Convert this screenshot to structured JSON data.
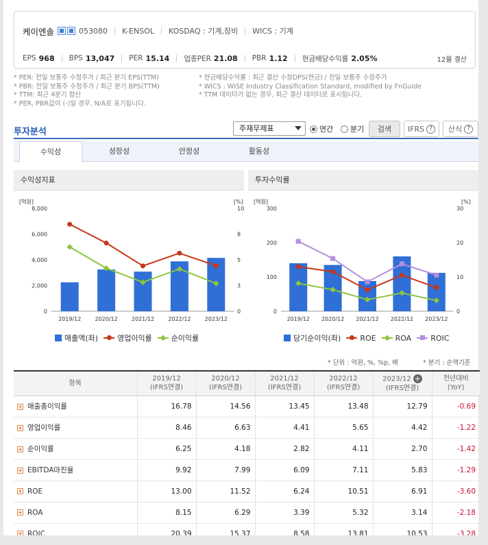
{
  "company": {
    "name": "케이엔솔",
    "code": "053080",
    "english": "K-ENSOL",
    "market": "KOSDAQ : 기계,장비",
    "wics": "WICS : 기계"
  },
  "metrics": [
    {
      "label": "EPS",
      "value": "968"
    },
    {
      "label": "BPS",
      "value": "13,047"
    },
    {
      "label": "PER",
      "value": "15.14"
    },
    {
      "label": "업종PER",
      "value": "21.08"
    },
    {
      "label": "PBR",
      "value": "1.12"
    },
    {
      "label": "현금배당수익률",
      "value": "2.05%"
    }
  ],
  "settlement": "12월 결산",
  "notes_left": [
    "* PER: 전일 보통주 수정주가 / 최근 분기 EPS(TTM)",
    "* PBR: 전일 보통주 수정주가 / 최근 분기 BPS(TTM)",
    "* TTM: 최근 4분기 합산",
    "* PER, PBR값이 (-)일 경우, N/A로 표기됩니다."
  ],
  "notes_right": [
    "* 현금배당수익률 : 최근 결산 수정DPS(현금) / 전일 보통주 수정주가",
    "* WICS : WISE Industry Classification Standard, modified by FnGuide",
    "* TTM 데이터가 없는 경우, 최근 결산 데이터로 표시됩니다."
  ],
  "section_title": "투자분석",
  "controls": {
    "select_value": "주재무제표",
    "radio_annual": "연간",
    "radio_quarter": "분기",
    "search": "검색",
    "ifrs": "IFRS",
    "formula": "산식"
  },
  "tabs": [
    "수익성",
    "성장성",
    "안정성",
    "활동성"
  ],
  "panels": {
    "left_title": "수익성지표",
    "right_title": "투자수익률"
  },
  "colors": {
    "bar": "#2f6fd6",
    "red": "#c8361a",
    "green": "#8cc63f",
    "purple": "#b48ee0",
    "accent": "#2a5eb5"
  },
  "chart_data": [
    {
      "type": "bar",
      "title": "수익성지표",
      "categories": [
        "2019/12",
        "2020/12",
        "2021/12",
        "2022/12",
        "2023/12"
      ],
      "ylabel_left": "[억원]",
      "ylabel_right": "[%]",
      "ylim_left": [
        0,
        8000
      ],
      "ylim_right": [
        0,
        10
      ],
      "yticks_left": [
        "8,000",
        "6,000",
        "4,000",
        "2,000",
        "0"
      ],
      "yticks_right": [
        "10",
        "8",
        "5",
        "3",
        "0"
      ],
      "series": [
        {
          "name": "매출액(좌)",
          "kind": "bar",
          "axis": "left",
          "values": [
            2250,
            3250,
            3080,
            3880,
            4150
          ]
        },
        {
          "name": "영업이익률",
          "kind": "line",
          "axis": "right",
          "values": [
            8.46,
            6.63,
            4.41,
            5.65,
            4.42
          ]
        },
        {
          "name": "순이익률",
          "kind": "line",
          "axis": "right",
          "values": [
            6.25,
            4.18,
            2.82,
            4.11,
            2.7
          ]
        }
      ]
    },
    {
      "type": "bar",
      "title": "투자수익률",
      "categories": [
        "2019/12",
        "2020/12",
        "2021/12",
        "2022/12",
        "2023/12"
      ],
      "ylabel_left": "[억원]",
      "ylabel_right": "[%]",
      "ylim_left": [
        0,
        300
      ],
      "ylim_right": [
        0,
        30
      ],
      "yticks_left": [
        "300",
        "200",
        "100",
        "0"
      ],
      "yticks_right": [
        "30",
        "20",
        "10",
        "0"
      ],
      "series": [
        {
          "name": "당기순이익(좌)",
          "kind": "bar",
          "axis": "left",
          "values": [
            140,
            135,
            88,
            160,
            112
          ]
        },
        {
          "name": "ROE",
          "kind": "line",
          "axis": "right",
          "values": [
            13.0,
            11.52,
            6.24,
            10.51,
            6.91
          ]
        },
        {
          "name": "ROA",
          "kind": "line",
          "axis": "right",
          "values": [
            8.15,
            6.29,
            3.39,
            5.32,
            3.14
          ]
        },
        {
          "name": "ROIC",
          "kind": "line",
          "axis": "right",
          "values": [
            20.39,
            15.37,
            8.58,
            13.81,
            10.53
          ]
        }
      ]
    }
  ],
  "unit_note": "* 단위 : 억원, %, %p, 배",
  "quarter_note": "* 분기 : 순액기준",
  "table": {
    "header_item": "항목",
    "columns": [
      {
        "year": "2019/12",
        "sub": "(IFRS연결)"
      },
      {
        "year": "2020/12",
        "sub": "(IFRS연결)"
      },
      {
        "year": "2021/12",
        "sub": "(IFRS연결)"
      },
      {
        "year": "2022/12",
        "sub": "(IFRS연결)"
      },
      {
        "year": "2023/12",
        "sub": "(IFRS연결)"
      }
    ],
    "yoy_header": "전년대비",
    "yoy_sub": "(YoY)",
    "rows": [
      {
        "label": "매출총이익률",
        "values": [
          "16.78",
          "14.56",
          "13.45",
          "13.48",
          "12.79"
        ],
        "yoy": "-0.69"
      },
      {
        "label": "영업이익률",
        "values": [
          "8.46",
          "6.63",
          "4.41",
          "5.65",
          "4.42"
        ],
        "yoy": "-1.22"
      },
      {
        "label": "순이익률",
        "values": [
          "6.25",
          "4.18",
          "2.82",
          "4.11",
          "2.70"
        ],
        "yoy": "-1.42"
      },
      {
        "label": "EBITDA마진율",
        "values": [
          "9.92",
          "7.99",
          "6.09",
          "7.11",
          "5.83"
        ],
        "yoy": "-1.29"
      },
      {
        "label": "ROE",
        "values": [
          "13.00",
          "11.52",
          "6.24",
          "10.51",
          "6.91"
        ],
        "yoy": "-3.60"
      },
      {
        "label": "ROA",
        "values": [
          "8.15",
          "6.29",
          "3.39",
          "5.32",
          "3.14"
        ],
        "yoy": "-2.18"
      },
      {
        "label": "ROIC",
        "values": [
          "20.39",
          "15.37",
          "8.58",
          "13.81",
          "10.53"
        ],
        "yoy": "-3.28"
      }
    ]
  }
}
